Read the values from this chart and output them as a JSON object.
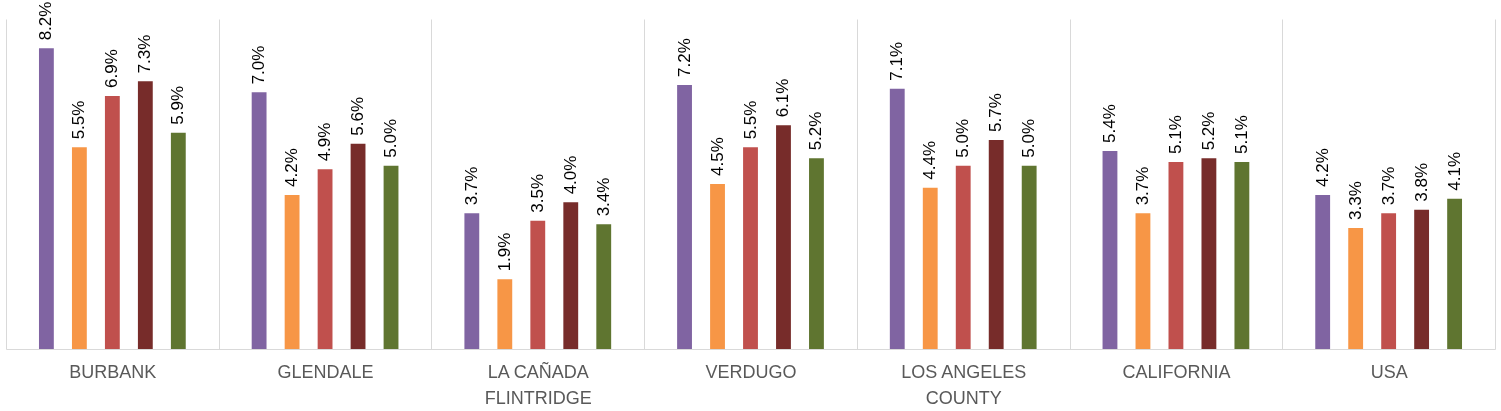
{
  "chart_data": {
    "type": "bar",
    "categories": [
      "BURBANK",
      "GLENDALE",
      "LA CAÑADA FLINTRIDGE",
      "VERDUGO",
      "LOS ANGELES COUNTY",
      "CALIFORNIA",
      "USA"
    ],
    "series": [
      {
        "color": "#8064a2",
        "values": [
          8.2,
          7.0,
          3.7,
          7.2,
          7.1,
          5.4,
          4.2
        ],
        "value_labels": [
          "8.2%",
          "7.0%",
          "3.7%",
          "7.2%",
          "7.1%",
          "5.4%",
          "4.2%"
        ]
      },
      {
        "color": "#f79646",
        "values": [
          5.5,
          4.2,
          1.9,
          4.5,
          4.4,
          3.7,
          3.3
        ],
        "value_labels": [
          "5.5%",
          "4.2%",
          "1.9%",
          "4.5%",
          "4.4%",
          "3.7%",
          "3.3%"
        ]
      },
      {
        "color": "#c0504d",
        "values": [
          6.9,
          4.9,
          3.5,
          5.5,
          5.0,
          5.1,
          3.7
        ],
        "value_labels": [
          "6.9%",
          "4.9%",
          "3.5%",
          "5.5%",
          "5.0%",
          "5.1%",
          "3.7%"
        ]
      },
      {
        "color": "#772c2a",
        "values": [
          7.3,
          5.6,
          4.0,
          6.1,
          5.7,
          5.2,
          3.8
        ],
        "value_labels": [
          "7.3%",
          "5.6%",
          "4.0%",
          "6.1%",
          "5.7%",
          "5.2%",
          "3.8%"
        ]
      },
      {
        "color": "#5f7530",
        "values": [
          5.9,
          5.0,
          3.4,
          5.2,
          5.0,
          5.1,
          4.1
        ],
        "value_labels": [
          "5.9%",
          "5.0%",
          "3.4%",
          "5.2%",
          "5.0%",
          "5.1%",
          "4.1%"
        ]
      }
    ],
    "grid": "x"
  }
}
